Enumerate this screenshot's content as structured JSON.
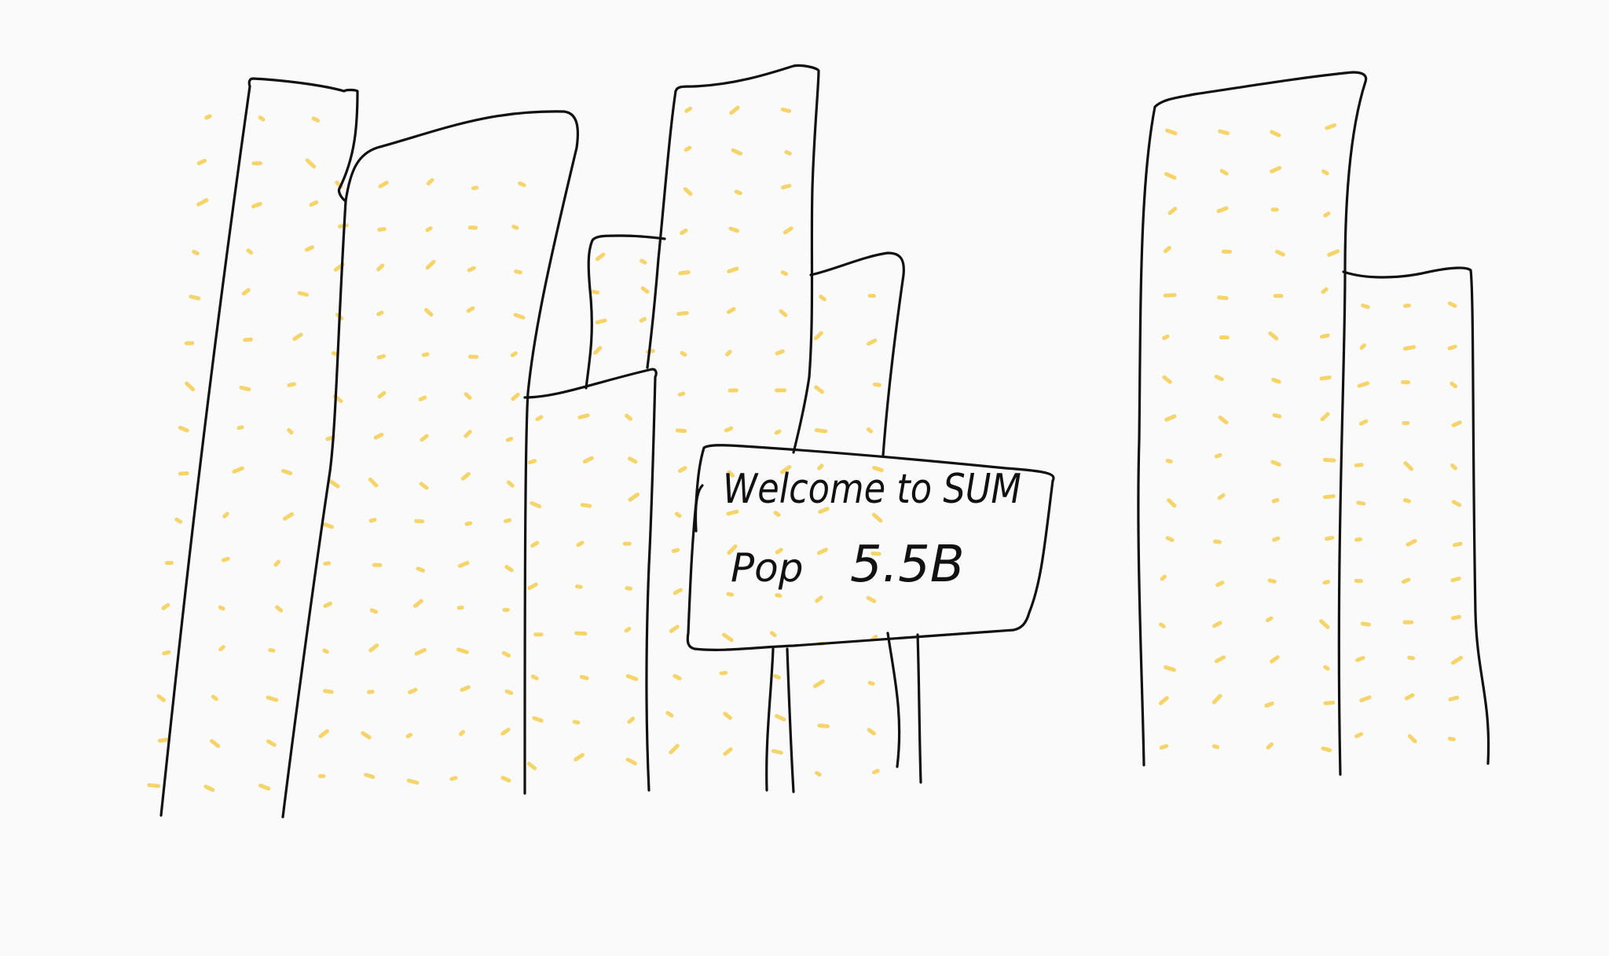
{
  "sign": {
    "line1": "Welcome to SUM",
    "pop_label": "Pop",
    "pop_value": "5.5B"
  },
  "colors": {
    "background": "#fafafa",
    "ink": "#111111",
    "window_dots": "#f7d46a"
  }
}
